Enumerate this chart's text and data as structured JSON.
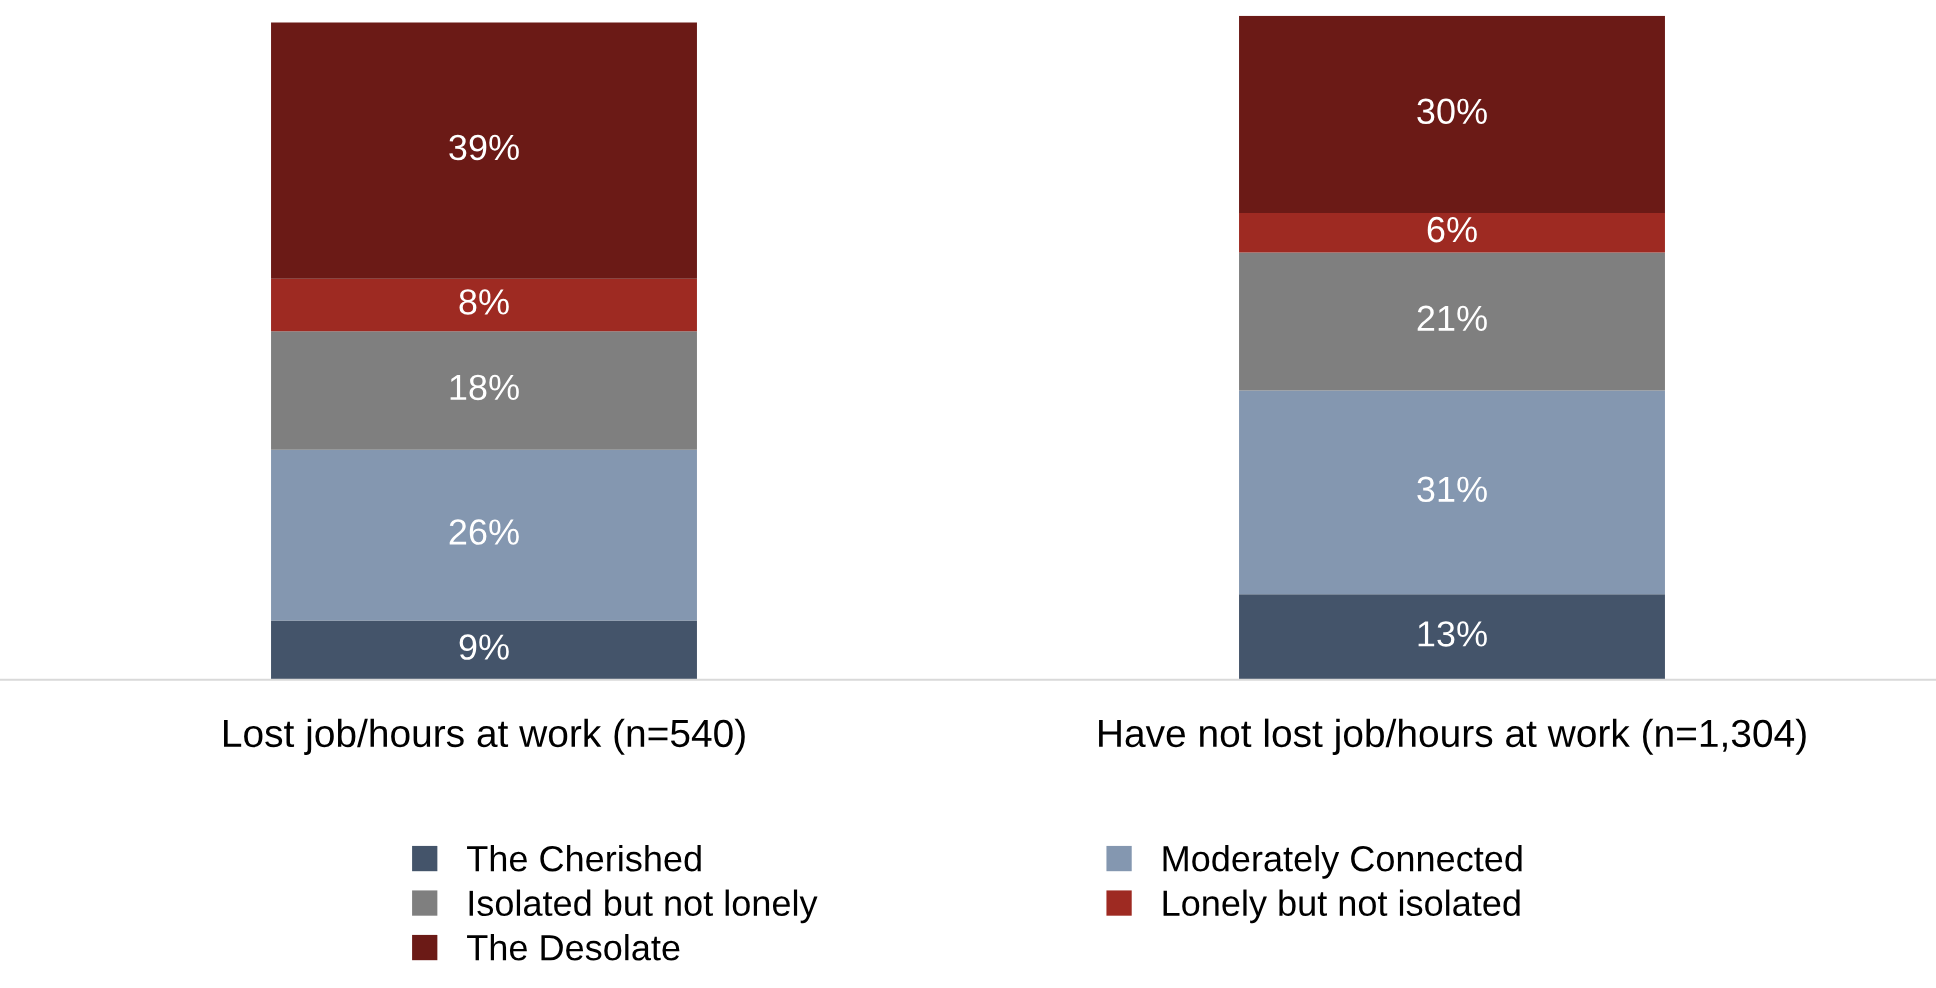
{
  "chart_data": {
    "type": "bar",
    "stacked": true,
    "categories": [
      "Lost job/hours at work (n=540)",
      "Have not lost job/hours at work (n=1,304)"
    ],
    "series": [
      {
        "name": "The Cherished",
        "color": "#44546a",
        "values": [
          9,
          13
        ],
        "value_labels": [
          "9%",
          "13%"
        ]
      },
      {
        "name": "Moderately Connected",
        "color": "#8497b0",
        "values": [
          26,
          31
        ],
        "value_labels": [
          "26%",
          "31%"
        ]
      },
      {
        "name": "Isolated but not lonely",
        "color": "#7f7f7f",
        "values": [
          18,
          21
        ],
        "value_labels": [
          "18%",
          "21%"
        ]
      },
      {
        "name": "Lonely but not isolated",
        "color": "#9e2a22",
        "values": [
          8,
          6
        ],
        "value_labels": [
          "8%",
          "6%"
        ]
      },
      {
        "name": "The Desolate",
        "color": "#6b1a16",
        "values": [
          39,
          30
        ],
        "value_labels": [
          "39%",
          "30%"
        ]
      }
    ],
    "legend": "bottom",
    "grid": false
  }
}
